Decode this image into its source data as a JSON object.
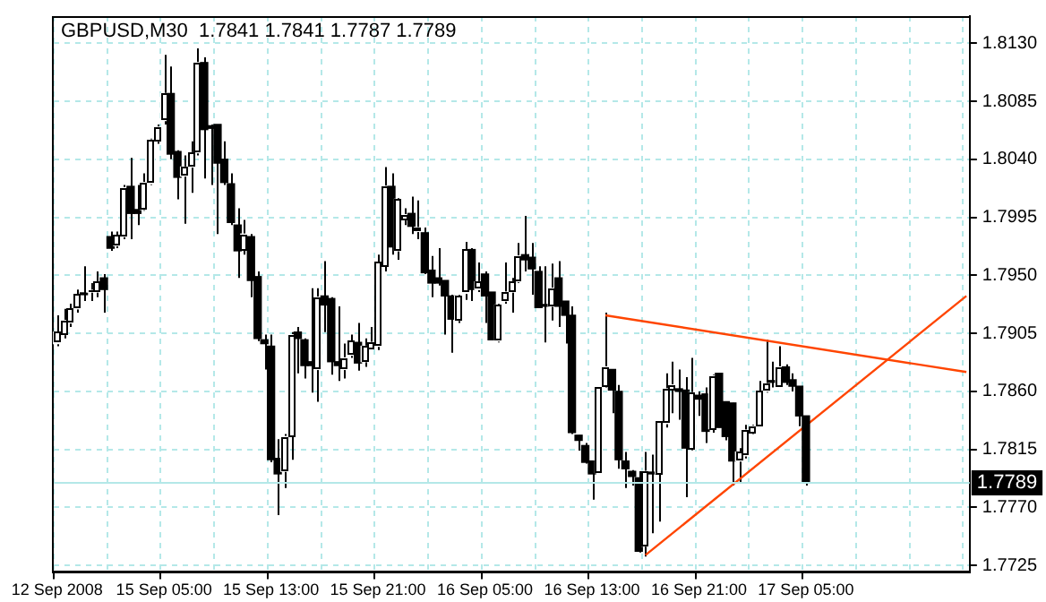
{
  "chart_data": {
    "type": "candlestick",
    "title": "GBPUSD,M30  1.7841 1.7841 1.7787 1.7789",
    "categories": [
      "12 Sep 2008",
      null,
      null,
      null,
      null,
      null,
      null,
      null,
      null,
      null,
      null,
      null,
      null,
      null,
      null,
      null,
      "15 Sep 05:00",
      null,
      null,
      null,
      null,
      null,
      null,
      null,
      null,
      null,
      null,
      null,
      null,
      null,
      null,
      null,
      "15 Sep 13:00",
      null,
      null,
      null,
      null,
      null,
      null,
      null,
      null,
      null,
      null,
      null,
      null,
      null,
      null,
      null,
      "15 Sep 21:00",
      null,
      null,
      null,
      null,
      null,
      null,
      null,
      null,
      null,
      null,
      null,
      null,
      null,
      null,
      null,
      "16 Sep 05:00",
      null,
      null,
      null,
      null,
      null,
      null,
      null,
      null,
      null,
      null,
      null,
      null,
      null,
      null,
      null,
      "16 Sep 13:00",
      null,
      null,
      null,
      null,
      null,
      null,
      null,
      null,
      null,
      null,
      null,
      null,
      null,
      null,
      null,
      "16 Sep 21:00",
      null,
      null,
      null,
      null,
      null,
      null,
      null,
      null,
      null,
      null,
      null,
      null,
      null,
      null,
      null,
      "17 Sep 05:00",
      null,
      null,
      null,
      null,
      null,
      null,
      null,
      null,
      null,
      null,
      null,
      null,
      null,
      null,
      null,
      null,
      null,
      null,
      null,
      null,
      null,
      null,
      null,
      null
    ],
    "ohlc": [
      [
        1.7897,
        1.7919,
        1.7895,
        1.7906
      ],
      [
        1.7904,
        1.7924,
        1.7901,
        1.7915
      ],
      [
        1.7913,
        1.7928,
        1.791,
        1.7924
      ],
      [
        1.7924,
        1.7939,
        1.7921,
        1.7935
      ],
      [
        1.7936,
        1.7957,
        1.793,
        1.7935
      ],
      [
        1.7937,
        1.7944,
        1.793,
        1.7938
      ],
      [
        1.7937,
        1.7953,
        1.7933,
        1.7945
      ],
      [
        1.7948,
        1.7951,
        1.7921,
        1.7939
      ],
      [
        1.798,
        1.7984,
        1.7969,
        1.7971
      ],
      [
        1.7973,
        1.7984,
        1.7971,
        1.7981
      ],
      [
        1.798,
        1.802,
        1.7978,
        1.8018
      ],
      [
        1.8019,
        1.8041,
        1.7978,
        1.7998
      ],
      [
        1.8001,
        1.802,
        1.7989,
        1.7998
      ],
      [
        1.8001,
        1.8029,
        1.8,
        1.8022
      ],
      [
        1.8021,
        1.8056,
        1.802,
        1.8055
      ],
      [
        1.8054,
        1.8067,
        1.8052,
        1.8065
      ],
      [
        1.807,
        1.8121,
        1.8067,
        1.8091
      ],
      [
        1.8091,
        1.8112,
        1.804,
        1.8044
      ],
      [
        1.8046,
        1.8047,
        1.8009,
        1.8026
      ],
      [
        1.8027,
        1.8043,
        1.799,
        1.8034
      ],
      [
        1.8034,
        1.8054,
        1.8014,
        1.8045
      ],
      [
        1.8045,
        1.8126,
        1.8043,
        1.8115
      ],
      [
        1.8115,
        1.8119,
        1.8025,
        1.8063
      ],
      [
        1.8066,
        1.8067,
        1.802,
        1.8064
      ],
      [
        1.8067,
        1.8067,
        1.7982,
        1.8037
      ],
      [
        1.804,
        1.8054,
        1.802,
        1.8022
      ],
      [
        1.8021,
        1.8029,
        1.7989,
        1.7991
      ],
      [
        1.7989,
        1.8002,
        1.7948,
        1.7969
      ],
      [
        1.797,
        1.7993,
        1.7966,
        1.7982
      ],
      [
        1.798,
        1.7982,
        1.7933,
        1.7946
      ],
      [
        1.7949,
        1.7953,
        1.7899,
        1.7901
      ],
      [
        1.79,
        1.7904,
        1.7877,
        1.7897
      ],
      [
        1.7895,
        1.7904,
        1.7805,
        1.7807
      ],
      [
        1.7808,
        1.7823,
        1.7764,
        1.7796
      ],
      [
        1.7798,
        1.7827,
        1.7785,
        1.7825
      ],
      [
        1.7825,
        1.7906,
        1.7807,
        1.7904
      ],
      [
        1.7906,
        1.791,
        1.7874,
        1.7901
      ],
      [
        1.79,
        1.7901,
        1.787,
        1.788
      ],
      [
        1.7883,
        1.794,
        1.7859,
        1.788
      ],
      [
        1.7877,
        1.794,
        1.7852,
        1.7933
      ],
      [
        1.7934,
        1.7961,
        1.7906,
        1.7927
      ],
      [
        1.7932,
        1.7933,
        1.7873,
        1.7883
      ],
      [
        1.7883,
        1.7926,
        1.7868,
        1.788
      ],
      [
        1.7877,
        1.7897,
        1.787,
        1.7886
      ],
      [
        1.7888,
        1.7904,
        1.7886,
        1.7899
      ],
      [
        1.7898,
        1.7913,
        1.7876,
        1.7882
      ],
      [
        1.7883,
        1.7901,
        1.7879,
        1.7895
      ],
      [
        1.7893,
        1.791,
        1.7893,
        1.7898
      ],
      [
        1.7895,
        1.7966,
        1.7892,
        1.796
      ],
      [
        1.7957,
        1.8034,
        1.7953,
        1.8019
      ],
      [
        1.8019,
        1.8029,
        1.7966,
        1.7972
      ],
      [
        1.7969,
        1.801,
        1.7962,
        1.8009
      ],
      [
        1.7993,
        1.8002,
        1.7989,
        1.7997
      ],
      [
        1.7998,
        1.8011,
        1.7982,
        1.7988
      ],
      [
        1.7984,
        1.8008,
        1.7978,
        1.7987
      ],
      [
        1.7983,
        1.7987,
        1.7951,
        1.7952
      ],
      [
        1.7954,
        1.7965,
        1.7933,
        1.7944
      ],
      [
        1.7948,
        1.7971,
        1.7942,
        1.7944
      ],
      [
        1.7946,
        1.7946,
        1.7904,
        1.7934
      ],
      [
        1.7934,
        1.7935,
        1.789,
        1.7916
      ],
      [
        1.7915,
        1.7935,
        1.7913,
        1.7934
      ],
      [
        1.7936,
        1.7976,
        1.7931,
        1.797
      ],
      [
        1.797,
        1.7971,
        1.793,
        1.7939
      ],
      [
        1.7939,
        1.796,
        1.7937,
        1.7945
      ],
      [
        1.7951,
        1.7953,
        1.7913,
        1.7934
      ],
      [
        1.7937,
        1.7937,
        1.79,
        1.79
      ],
      [
        1.7899,
        1.7928,
        1.7898,
        1.7927
      ],
      [
        1.793,
        1.796,
        1.7928,
        1.7937
      ],
      [
        1.7937,
        1.7948,
        1.7921,
        1.7945
      ],
      [
        1.7945,
        1.7975,
        1.7944,
        1.7965
      ],
      [
        1.7966,
        1.7996,
        1.7953,
        1.7962
      ],
      [
        1.7964,
        1.7975,
        1.7935,
        1.7955
      ],
      [
        1.7953,
        1.7957,
        1.7925,
        1.7925
      ],
      [
        1.7927,
        1.7957,
        1.7898,
        1.7926
      ],
      [
        1.7926,
        1.7959,
        1.7915,
        1.794
      ],
      [
        1.7948,
        1.7961,
        1.791,
        1.7926
      ],
      [
        1.793,
        1.793,
        1.7897,
        1.7919
      ],
      [
        1.7919,
        1.7926,
        1.7827,
        1.7828
      ],
      [
        1.7826,
        1.7826,
        1.7814,
        1.7822
      ],
      [
        1.7818,
        1.782,
        1.7804,
        1.7805
      ],
      [
        1.7806,
        1.7806,
        1.7776,
        1.7796
      ],
      [
        1.7797,
        1.7863,
        1.7797,
        1.7863
      ],
      [
        1.7864,
        1.7921,
        1.7863,
        1.7879
      ],
      [
        1.7877,
        1.7877,
        1.7843,
        1.7861
      ],
      [
        1.786,
        1.7865,
        1.78,
        1.7807
      ],
      [
        1.7806,
        1.7813,
        1.7785,
        1.78
      ],
      [
        1.7798,
        1.7799,
        1.7787,
        1.7794
      ],
      [
        1.7793,
        1.7798,
        1.7735,
        1.7736
      ],
      [
        1.774,
        1.7813,
        1.7732,
        1.7798
      ],
      [
        1.7797,
        1.7811,
        1.775,
        1.7796
      ],
      [
        1.7796,
        1.7837,
        1.7759,
        1.7837
      ],
      [
        1.7835,
        1.7874,
        1.7832,
        1.7862
      ],
      [
        1.7861,
        1.7883,
        1.7843,
        1.7865
      ],
      [
        1.7862,
        1.7877,
        1.7838,
        1.786
      ],
      [
        1.7861,
        1.7871,
        1.7778,
        1.7816
      ],
      [
        1.7815,
        1.7886,
        1.7814,
        1.7859
      ],
      [
        1.7857,
        1.786,
        1.7841,
        1.7854
      ],
      [
        1.7858,
        1.7863,
        1.782,
        1.7829
      ],
      [
        1.7831,
        1.7873,
        1.7828,
        1.7872
      ],
      [
        1.7874,
        1.7874,
        1.7832,
        1.7832
      ],
      [
        1.7852,
        1.7852,
        1.7822,
        1.7825
      ],
      [
        1.7851,
        1.7851,
        1.7787,
        1.7806
      ],
      [
        1.7806,
        1.7816,
        1.7789,
        1.7813
      ],
      [
        1.781,
        1.7834,
        1.7808,
        1.783
      ],
      [
        1.7828,
        1.7834,
        1.7827,
        1.7833
      ],
      [
        1.7832,
        1.7868,
        1.7832,
        1.786
      ],
      [
        1.786,
        1.79,
        1.7859,
        1.7866
      ],
      [
        1.7868,
        1.7883,
        1.7863,
        1.7867
      ],
      [
        1.7864,
        1.7895,
        1.7864,
        1.7879
      ],
      [
        1.7879,
        1.7881,
        1.7865,
        1.7867
      ],
      [
        1.7869,
        1.7874,
        1.786,
        1.7864
      ],
      [
        1.7864,
        1.7864,
        1.7833,
        1.7841
      ],
      [
        1.7841,
        1.7841,
        1.7787,
        1.7789
      ],
      null,
      null,
      null,
      null,
      null,
      null,
      null,
      null,
      null,
      null,
      null,
      null,
      null,
      null,
      null,
      null,
      null,
      null,
      null,
      null,
      null,
      null,
      null,
      null
    ],
    "series": [
      {
        "type": "line",
        "color": "#ff4500",
        "values": [
          null,
          null,
          null,
          null,
          null,
          null,
          null,
          null,
          null,
          null,
          null,
          null,
          null,
          null,
          null,
          null,
          null,
          null,
          null,
          null,
          null,
          null,
          null,
          null,
          null,
          null,
          null,
          null,
          null,
          null,
          null,
          null,
          null,
          null,
          null,
          null,
          null,
          null,
          null,
          null,
          null,
          null,
          null,
          null,
          null,
          null,
          null,
          null,
          null,
          null,
          null,
          null,
          null,
          null,
          null,
          null,
          null,
          null,
          null,
          null,
          null,
          null,
          null,
          null,
          null,
          null,
          null,
          null,
          null,
          null,
          null,
          null,
          null,
          null,
          null,
          null,
          null,
          null,
          null,
          null,
          null,
          null,
          1.7919,
          null,
          null,
          null,
          null,
          null,
          null,
          null,
          null,
          null,
          null,
          null,
          null,
          null,
          null,
          null,
          null,
          null,
          null,
          null,
          null,
          null,
          null,
          null,
          null,
          null,
          null,
          null,
          null,
          null,
          null,
          null,
          null,
          null,
          null,
          null,
          null,
          null,
          null,
          null,
          null,
          null,
          null,
          null,
          null,
          null,
          null,
          null,
          null,
          null,
          null,
          null,
          null,
          null,
          1.7875
        ]
      },
      {
        "type": "line",
        "color": "#ff4500",
        "values": [
          null,
          null,
          null,
          null,
          null,
          null,
          null,
          null,
          null,
          null,
          null,
          null,
          null,
          null,
          null,
          null,
          null,
          null,
          null,
          null,
          null,
          null,
          null,
          null,
          null,
          null,
          null,
          null,
          null,
          null,
          null,
          null,
          null,
          null,
          null,
          null,
          null,
          null,
          null,
          null,
          null,
          null,
          null,
          null,
          null,
          null,
          null,
          null,
          null,
          null,
          null,
          null,
          null,
          null,
          null,
          null,
          null,
          null,
          null,
          null,
          null,
          null,
          null,
          null,
          null,
          null,
          null,
          null,
          null,
          null,
          null,
          null,
          null,
          null,
          null,
          null,
          null,
          null,
          null,
          null,
          null,
          null,
          null,
          null,
          null,
          null,
          null,
          null,
          1.7733,
          null,
          null,
          null,
          null,
          null,
          null,
          null,
          null,
          null,
          null,
          null,
          null,
          null,
          null,
          null,
          null,
          null,
          null,
          null,
          null,
          null,
          null,
          null,
          null,
          null,
          null,
          null,
          null,
          null,
          null,
          null,
          null,
          null,
          null,
          null,
          null,
          null,
          null,
          null,
          null,
          null,
          null,
          null,
          null,
          null,
          null,
          null,
          1.7934
        ]
      }
    ],
    "ylim": [
      1.772,
      1.8151
    ],
    "yticks": [
      {
        "value": 1.7725,
        "label": "1.7725"
      },
      {
        "value": 1.777,
        "label": "1.7770"
      },
      {
        "value": 1.7815,
        "label": "1.7815"
      },
      {
        "value": 1.786,
        "label": "1.7860"
      },
      {
        "value": 1.7905,
        "label": "1.7905"
      },
      {
        "value": 1.795,
        "label": "1.7950"
      },
      {
        "value": 1.7995,
        "label": "1.7995"
      },
      {
        "value": 1.804,
        "label": "1.8040"
      },
      {
        "value": 1.8085,
        "label": "1.8085"
      },
      {
        "value": 1.813,
        "label": "1.8130"
      }
    ],
    "ref_lines": [
      {
        "axis": "y",
        "value": 1.7789,
        "label": "1.7789",
        "color": "#b4e8e8"
      }
    ],
    "grid": true,
    "legend": false
  }
}
